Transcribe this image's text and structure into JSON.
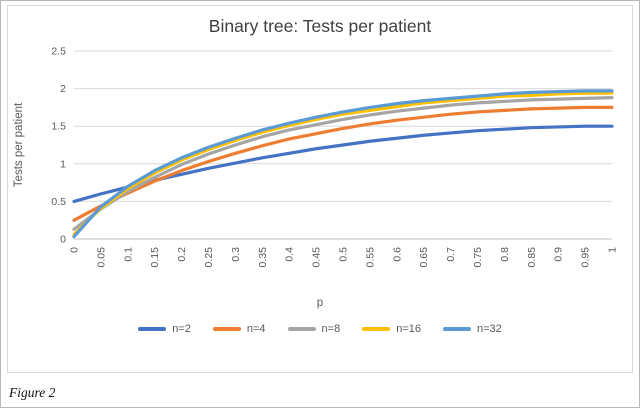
{
  "figure": {
    "caption": "Figure 2"
  },
  "chart_data": {
    "type": "line",
    "title": "Binary tree: Tests per patient",
    "xlabel": "p",
    "ylabel": "Tests per patient",
    "x_tick_labels": [
      "0",
      "0.05",
      "0.1",
      "0.15",
      "0.2",
      "0.25",
      "0.3",
      "0.35",
      "0.4",
      "0.45",
      "0.5",
      "0.55",
      "0.6",
      "0.65",
      "0.7",
      "0.75",
      "0.8",
      "0.85",
      "0.9",
      "0.95",
      "1"
    ],
    "x": [
      0,
      0.05,
      0.1,
      0.15,
      0.2,
      0.25,
      0.3,
      0.35,
      0.4,
      0.45,
      0.5,
      0.55,
      0.6,
      0.65,
      0.7,
      0.75,
      0.8,
      0.85,
      0.9,
      0.95,
      1
    ],
    "ylim": [
      0,
      2.5
    ],
    "y_ticks": [
      0,
      0.5,
      1,
      1.5,
      2,
      2.5
    ],
    "grid": true,
    "legend_position": "bottom",
    "grid_color": "#d9d9d9",
    "axis_color": "#bfbfbf",
    "series": [
      {
        "name": "n=2",
        "color": "#4472C4",
        "values": [
          0.5,
          0.6,
          0.69,
          0.78,
          0.86,
          0.94,
          1.01,
          1.08,
          1.14,
          1.2,
          1.25,
          1.3,
          1.34,
          1.38,
          1.41,
          1.44,
          1.46,
          1.48,
          1.49,
          1.5,
          1.5
        ]
      },
      {
        "name": "n=4",
        "color": "#ED7D31",
        "values": [
          0.25,
          0.44,
          0.61,
          0.77,
          0.91,
          1.03,
          1.14,
          1.24,
          1.33,
          1.4,
          1.47,
          1.53,
          1.58,
          1.62,
          1.66,
          1.69,
          1.71,
          1.73,
          1.74,
          1.75,
          1.75
        ]
      },
      {
        "name": "n=8",
        "color": "#A5A5A5",
        "values": [
          0.13,
          0.4,
          0.63,
          0.82,
          0.99,
          1.13,
          1.25,
          1.36,
          1.45,
          1.52,
          1.59,
          1.65,
          1.7,
          1.74,
          1.78,
          1.81,
          1.83,
          1.85,
          1.86,
          1.87,
          1.88
        ]
      },
      {
        "name": "n=16",
        "color": "#FFC000",
        "values": [
          0.06,
          0.41,
          0.67,
          0.88,
          1.05,
          1.19,
          1.31,
          1.42,
          1.51,
          1.59,
          1.66,
          1.71,
          1.76,
          1.81,
          1.84,
          1.87,
          1.9,
          1.91,
          1.93,
          1.94,
          1.94
        ]
      },
      {
        "name": "n=32",
        "color": "#5B9BD5",
        "values": [
          0.03,
          0.43,
          0.7,
          0.91,
          1.08,
          1.22,
          1.34,
          1.45,
          1.54,
          1.62,
          1.69,
          1.75,
          1.8,
          1.84,
          1.87,
          1.9,
          1.93,
          1.95,
          1.96,
          1.97,
          1.97
        ]
      }
    ]
  }
}
